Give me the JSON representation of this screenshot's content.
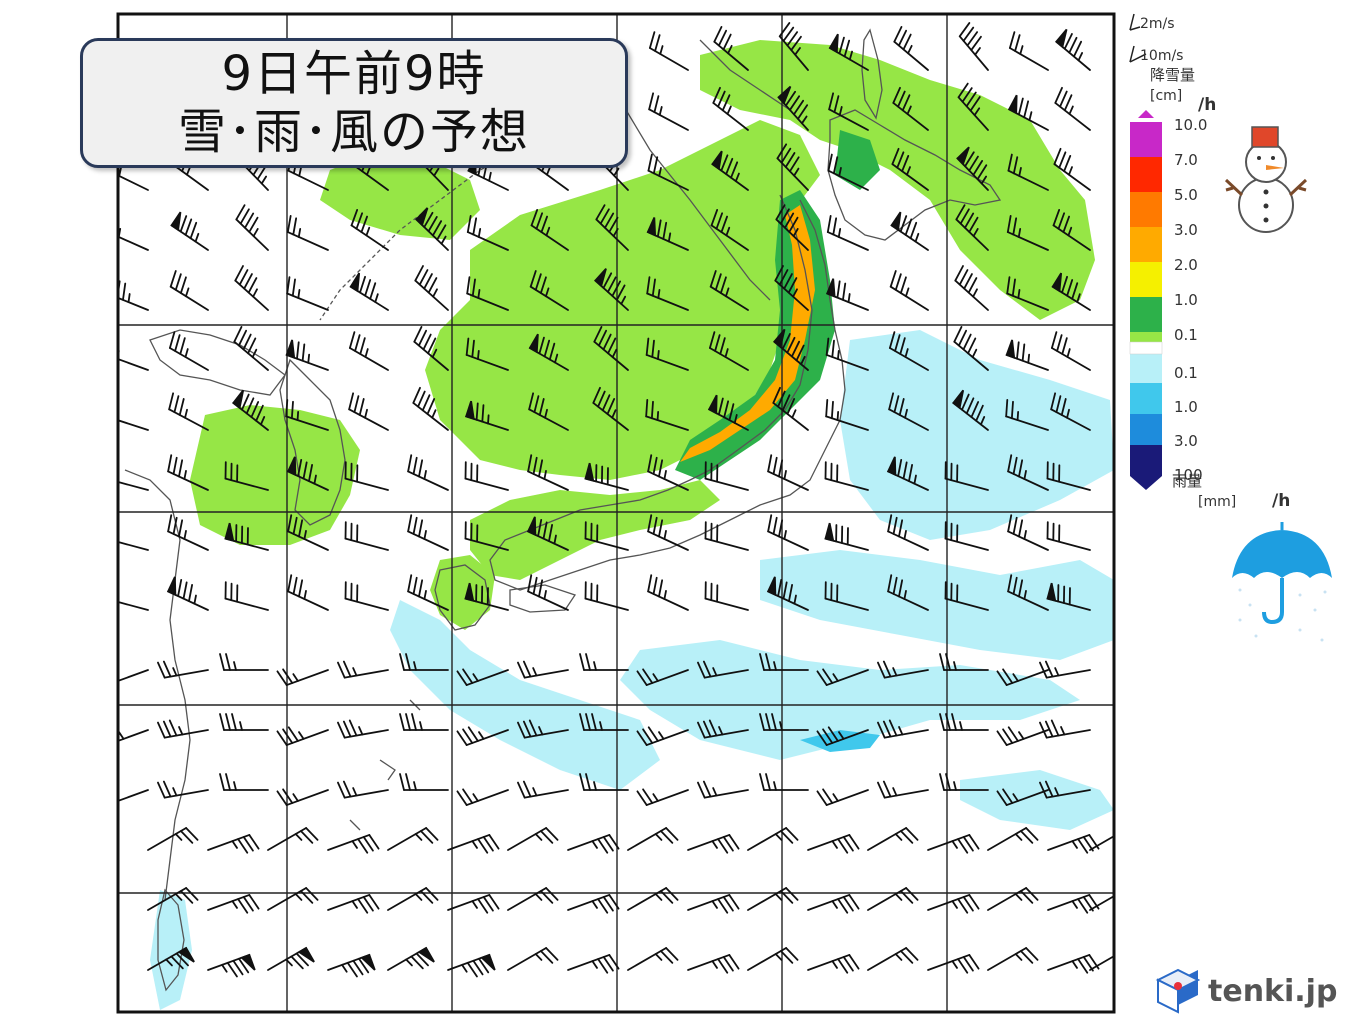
{
  "title": {
    "line1": "9日午前9時",
    "line2": "雪･雨･風の予想"
  },
  "wind_scale": {
    "short_barb": "2m/s",
    "long_barb": "10m/s"
  },
  "snow_legend": {
    "title": "降雪量",
    "unit": "[cm]",
    "per_hour": "/h",
    "levels": [
      "10.0",
      "7.0",
      "5.0",
      "3.0",
      "2.0",
      "1.0",
      "0.1"
    ],
    "colors": [
      "#c828c8",
      "#ff2800",
      "#ff7a00",
      "#ffaa00",
      "#f5f000",
      "#2db14a",
      "#96e646"
    ]
  },
  "rain_legend": {
    "title": "雨量",
    "unit": "[mm]",
    "per_hour": "/h",
    "levels": [
      "0.1",
      "1.0",
      "3.0",
      "100"
    ],
    "colors": [
      "#b8f0f8",
      "#40c8ec",
      "#1e8cdc",
      "#1a1a78"
    ]
  },
  "icons": {
    "snowman": "snowman-icon",
    "umbrella": "umbrella-icon",
    "logo": "tenki-logo-icon"
  },
  "logo": {
    "text": "tenki.jp"
  },
  "colors": {
    "snow_light": "#96e646",
    "snow_medium": "#2db14a",
    "snow_heavy": "#ffaa00",
    "rain_light": "#b8f0f8",
    "rain_medium": "#40c8ec"
  }
}
